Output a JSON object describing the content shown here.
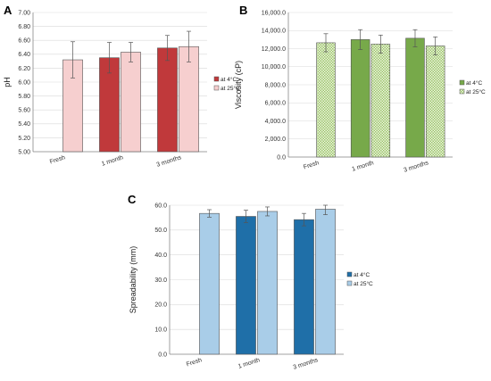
{
  "chart_data": [
    {
      "panel": "A",
      "type": "bar",
      "categories": [
        "Fresh",
        "1 month",
        "3 months"
      ],
      "ylabel": "pH",
      "xlabel": "",
      "ylim": [
        5.0,
        7.0
      ],
      "yticks": [
        "5.00",
        "5.20",
        "5.40",
        "5.60",
        "5.80",
        "6.00",
        "6.20",
        "6.40",
        "6.60",
        "6.80",
        "7.00"
      ],
      "grid": true,
      "legend_position": "right",
      "series": [
        {
          "name": "at 4°C",
          "color": "#c0393b",
          "pattern": "solid",
          "values": [
            null,
            6.35,
            6.49
          ],
          "errors": [
            null,
            0.22,
            0.18
          ]
        },
        {
          "name": "at 25°C",
          "color": "#f6cfcf",
          "pattern": "solid",
          "values": [
            6.32,
            6.43,
            6.51
          ],
          "errors": [
            0.26,
            0.14,
            0.22
          ]
        }
      ]
    },
    {
      "panel": "B",
      "type": "bar",
      "categories": [
        "Fresh",
        "1 month",
        "3 months"
      ],
      "ylabel": "Viscosity (cP)",
      "xlabel": "",
      "ylim": [
        0,
        16000
      ],
      "yticks": [
        "0.0",
        "2,000.0",
        "4,000.0",
        "6,000.0",
        "8,000.0",
        "10,000.0",
        "12,000.0",
        "14,000.0",
        "16,000.0"
      ],
      "grid": true,
      "legend_position": "right",
      "series": [
        {
          "name": "at 4°C",
          "color": "#77a94a",
          "pattern": "solid",
          "values": [
            null,
            13000,
            13150
          ],
          "errors": [
            null,
            1100,
            950
          ]
        },
        {
          "name": "at 25°C",
          "color": "#d6e9b8",
          "pattern": "checkered",
          "values": [
            12650,
            12500,
            12300
          ],
          "errors": [
            1000,
            1000,
            1000
          ]
        }
      ]
    },
    {
      "panel": "C",
      "type": "bar",
      "categories": [
        "Fresh",
        "1 month",
        "3 months"
      ],
      "ylabel": "Spreadability  (mm)",
      "xlabel": "",
      "ylim": [
        0,
        60
      ],
      "yticks": [
        "0.0",
        "10.0",
        "20.0",
        "30.0",
        "40.0",
        "50.0",
        "60.0"
      ],
      "grid": true,
      "legend_position": "right",
      "series": [
        {
          "name": "at 4°C",
          "color": "#1f6fa8",
          "pattern": "solid",
          "values": [
            null,
            55.5,
            54.2
          ],
          "errors": [
            null,
            2.5,
            2.5
          ]
        },
        {
          "name": "at 25°C",
          "color": "#a9cde8",
          "pattern": "solid",
          "values": [
            56.7,
            57.5,
            58.4
          ],
          "errors": [
            1.5,
            1.8,
            2.2
          ]
        }
      ]
    }
  ]
}
